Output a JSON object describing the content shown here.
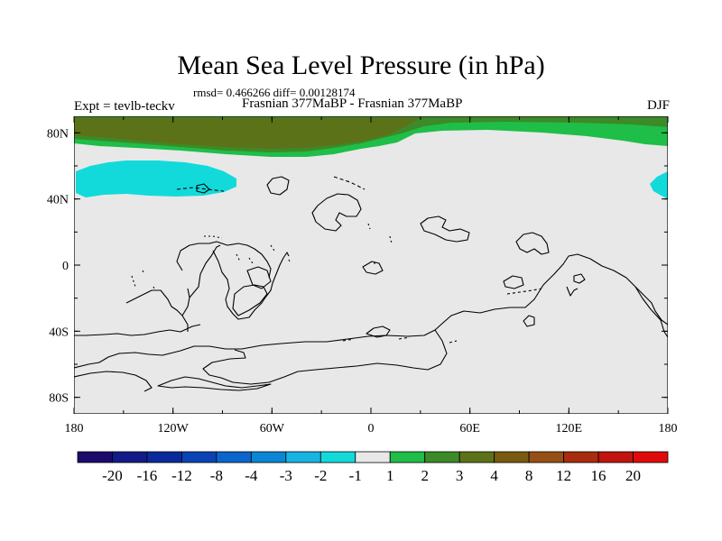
{
  "title": "Mean Sea Level Pressure (in hPa)",
  "stats": "rmsd= 0.466266 diff= 0.00128174",
  "experiment_label": "Expt = tevlb-teckv",
  "experiment_names": "Frasnian 377MaBP - Frasnian 377MaBP",
  "season": "DJF",
  "map": {
    "projection": "cylindrical equidistant",
    "lon_range": [
      -180,
      180
    ],
    "lat_range": [
      -90,
      90
    ],
    "lat_ticks": [
      {
        "value": 80,
        "label": "80N"
      },
      {
        "value": 40,
        "label": "40N"
      },
      {
        "value": 0,
        "label": "0"
      },
      {
        "value": -40,
        "label": "40S"
      },
      {
        "value": -80,
        "label": "80S"
      }
    ],
    "lon_ticks": [
      {
        "value": -180,
        "label": "180"
      },
      {
        "value": -120,
        "label": "120W"
      },
      {
        "value": -60,
        "label": "60W"
      },
      {
        "value": 0,
        "label": "0"
      },
      {
        "value": 60,
        "label": "60E"
      },
      {
        "value": 120,
        "label": "120E"
      },
      {
        "value": 180,
        "label": "180"
      }
    ],
    "background_color": "#e8e8e8",
    "coastline_color": "#000000"
  },
  "chart_data": {
    "type": "heatmap",
    "title": "Mean Sea Level Pressure (in hPa)",
    "field": "difference in mean sea level pressure (hPa)",
    "features": [
      {
        "name": "high-lat-north-positive",
        "approx_value_range": [
          1,
          4
        ],
        "description": "band north of ~60N, values 1 to 3 along most longitudes, 3 to 4 core near 150W-30W"
      },
      {
        "name": "northern-mid-lat-negative",
        "approx_value_range": [
          -2,
          -1
        ],
        "description": "patch 40N-60N around 170W-100W and at 170E-180E"
      }
    ],
    "colorbar": {
      "boundaries": [
        "-20",
        "-16",
        "-12",
        "-8",
        "-4",
        "-3",
        "-2",
        "-1",
        "1",
        "2",
        "3",
        "4",
        "8",
        "12",
        "16",
        "20"
      ],
      "colors": [
        "#1c0a6c",
        "#131b88",
        "#0a2a9c",
        "#0a44b4",
        "#0a66cc",
        "#0a86d4",
        "#16b4e2",
        "#12dada",
        "#e8e8e8",
        "#1ebe48",
        "#3c8a28",
        "#5c7218",
        "#7a5a10",
        "#965016",
        "#a82c0e",
        "#c0140e",
        "#e00a0a"
      ]
    }
  }
}
